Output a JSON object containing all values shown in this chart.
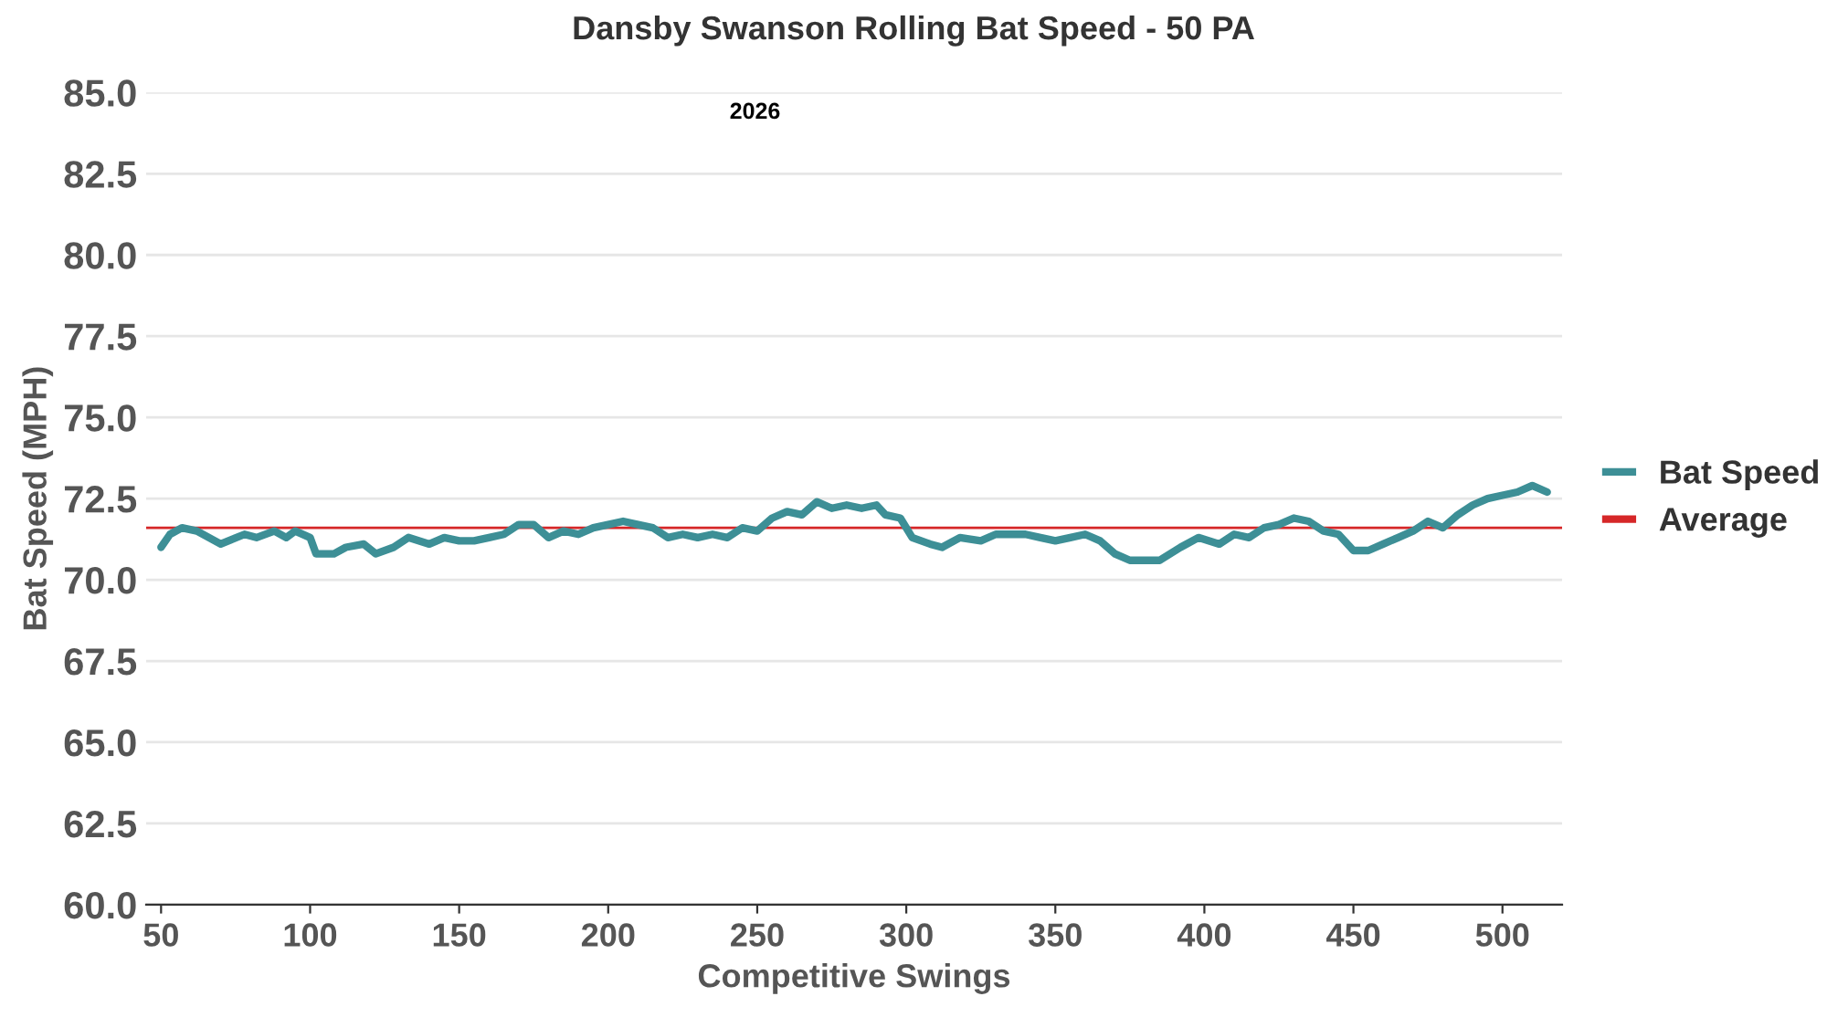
{
  "chart_data": {
    "type": "line",
    "title": "Dansby Swanson Rolling Bat Speed - 50 PA",
    "annotations": [
      "2026"
    ],
    "xlabel": "Competitive Swings",
    "ylabel": "Bat Speed (MPH)",
    "xlim": [
      45,
      520
    ],
    "xticks": [
      50,
      100,
      150,
      200,
      250,
      300,
      350,
      400,
      450,
      500
    ],
    "ylim": [
      60,
      85
    ],
    "yticks": [
      {
        "value": 60,
        "label": "60.0"
      },
      {
        "value": 62.5,
        "label": "62.5"
      },
      {
        "value": 65,
        "label": "65.0"
      },
      {
        "value": 67.5,
        "label": "67.5"
      },
      {
        "value": 70,
        "label": "70.0"
      },
      {
        "value": 72.5,
        "label": "72.5"
      },
      {
        "value": 75,
        "label": "75.0"
      },
      {
        "value": 77.5,
        "label": "77.5"
      },
      {
        "value": 80,
        "label": "80.0"
      },
      {
        "value": 82.5,
        "label": "82.5"
      },
      {
        "value": 85,
        "label": "85.0"
      }
    ],
    "grid": "y",
    "legend": "right",
    "line_style": "solid",
    "marker": "none",
    "x": [
      50,
      53,
      57,
      62,
      70,
      78,
      82,
      88,
      92,
      95,
      100,
      102,
      108,
      112,
      118,
      122,
      128,
      133,
      140,
      145,
      150,
      155,
      160,
      165,
      170,
      175,
      180,
      185,
      190,
      195,
      200,
      205,
      210,
      215,
      220,
      225,
      230,
      235,
      240,
      245,
      250,
      255,
      260,
      265,
      270,
      275,
      280,
      285,
      290,
      293,
      298,
      302,
      308,
      312,
      318,
      325,
      330,
      340,
      345,
      350,
      355,
      360,
      365,
      370,
      375,
      380,
      385,
      392,
      398,
      405,
      410,
      415,
      420,
      425,
      430,
      435,
      440,
      445,
      450,
      455,
      460,
      465,
      470,
      475,
      480,
      485,
      490,
      495,
      500,
      505,
      510,
      515
    ],
    "series": [
      {
        "name": "Bat Speed",
        "color": "#3d8f96",
        "values": [
          71.0,
          71.4,
          71.6,
          71.5,
          71.1,
          71.4,
          71.3,
          71.5,
          71.3,
          71.5,
          71.3,
          70.8,
          70.8,
          71.0,
          71.1,
          70.8,
          71.0,
          71.3,
          71.1,
          71.3,
          71.2,
          71.2,
          71.3,
          71.4,
          71.7,
          71.7,
          71.3,
          71.5,
          71.4,
          71.6,
          71.7,
          71.8,
          71.7,
          71.6,
          71.3,
          71.4,
          71.3,
          71.4,
          71.3,
          71.6,
          71.5,
          71.9,
          72.1,
          72.0,
          72.4,
          72.2,
          72.3,
          72.2,
          72.3,
          72.0,
          71.9,
          71.3,
          71.1,
          71.0,
          71.3,
          71.2,
          71.4,
          71.4,
          71.3,
          71.2,
          71.3,
          71.4,
          71.2,
          70.8,
          70.6,
          70.6,
          70.6,
          71.0,
          71.3,
          71.1,
          71.4,
          71.3,
          71.6,
          71.7,
          71.9,
          71.8,
          71.5,
          71.4,
          70.9,
          70.9,
          71.1,
          71.3,
          71.5,
          71.8,
          71.6,
          72.0,
          72.3,
          72.5,
          72.6,
          72.7,
          72.9,
          72.7
        ]
      }
    ],
    "ref_lines": [
      {
        "axis": "y",
        "value": 71.6,
        "label": "Average",
        "color": "#d62728",
        "line_style": "solid"
      }
    ]
  }
}
